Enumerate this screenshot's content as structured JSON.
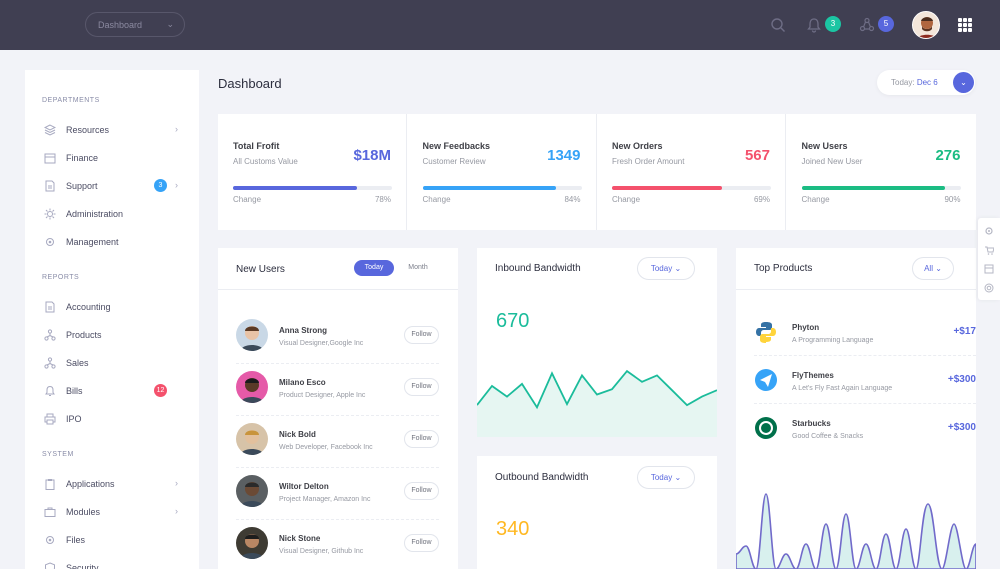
{
  "topbar": {
    "dropdown_label": "Dashboard",
    "icons": [
      "search-icon",
      "bell-icon",
      "share-icon",
      "apps-grid-icon"
    ],
    "badges": [
      {
        "count": "3",
        "color": "#1bc5a3"
      },
      {
        "count": "5",
        "color": "#5867dd"
      }
    ]
  },
  "sidebar": {
    "sections": [
      {
        "title": "DEPARTMENTS"
      },
      {
        "title": "REPORTS"
      },
      {
        "title": "SYSTEM"
      }
    ],
    "items": [
      {
        "label": "Resources",
        "icon": "layers-icon",
        "arrow": true
      },
      {
        "label": "Finance",
        "icon": "calendar-icon"
      },
      {
        "label": "Support",
        "icon": "document-icon",
        "badge": "3",
        "badge_color": "#36a3f7",
        "arrow": true
      },
      {
        "label": "Administration",
        "icon": "settings-icon"
      },
      {
        "label": "Management",
        "icon": "gear-icon"
      },
      {
        "label": "Accounting",
        "icon": "document-icon"
      },
      {
        "label": "Products",
        "icon": "network-icon"
      },
      {
        "label": "Sales",
        "icon": "network-icon"
      },
      {
        "label": "Bills",
        "icon": "bell-icon",
        "badge": "12",
        "badge_color": "#f4516c"
      },
      {
        "label": "IPO",
        "icon": "printer-icon"
      },
      {
        "label": "Applications",
        "icon": "clipboard-icon",
        "arrow": true
      },
      {
        "label": "Modules",
        "icon": "briefcase-icon",
        "arrow": true
      },
      {
        "label": "Files",
        "icon": "gear-icon"
      },
      {
        "label": "Security",
        "icon": "shield-icon"
      }
    ]
  },
  "header": {
    "title": "Dashboard",
    "date_label": "Today:",
    "date_value": "Dec 6"
  },
  "stats": [
    {
      "title": "Total Frofit",
      "subtitle": "All Customs Value",
      "value": "$18M",
      "color": "#5867dd",
      "progress": 0.78,
      "change_label": "Change",
      "change_value": "78%"
    },
    {
      "title": "New Feedbacks",
      "subtitle": "Customer Review",
      "value": "1349",
      "color": "#36a3f7",
      "progress": 0.84,
      "change_label": "Change",
      "change_value": "84%"
    },
    {
      "title": "New Orders",
      "subtitle": "Fresh Order Amount",
      "value": "567",
      "color": "#f4516c",
      "progress": 0.69,
      "change_label": "Change",
      "change_value": "69%"
    },
    {
      "title": "New Users",
      "subtitle": "Joined New User",
      "value": "276",
      "color": "#1bbc83",
      "progress": 0.9,
      "change_label": "Change",
      "change_value": "90%"
    }
  ],
  "new_users": {
    "title": "New Users",
    "tab_today": "Today",
    "tab_month": "Month",
    "follow_label": "Follow",
    "users": [
      {
        "name": "Anna Strong",
        "job": "Visual Designer,Google Inc",
        "avatar_bg": "#c9d8e6"
      },
      {
        "name": "Milano Esco",
        "job": "Product Designer, Apple Inc",
        "avatar_bg": "#e55aa8"
      },
      {
        "name": "Nick Bold",
        "job": "Web Developer, Facebook Inc",
        "avatar_bg": "#d7c3a8"
      },
      {
        "name": "Wiltor Delton",
        "job": "Project Manager, Amazon Inc",
        "avatar_bg": "#5a5f62"
      },
      {
        "name": "Nick Stone",
        "job": "Visual Designer, Github Inc",
        "avatar_bg": "#3e3b33"
      }
    ]
  },
  "inbound": {
    "title": "Inbound Bandwidth",
    "filter": "Today",
    "value": "670",
    "color": "#1bbc9b",
    "fill": "#e6f6f2",
    "points": [
      30,
      48,
      38,
      50,
      28,
      60,
      31,
      58,
      40,
      45,
      62,
      52,
      58,
      44,
      30,
      38,
      44
    ]
  },
  "outbound": {
    "title": "Outbound Bandwidth",
    "filter": "Today",
    "value": "340",
    "color": "#ffb822"
  },
  "top_products": {
    "title": "Top Products",
    "filter": "All",
    "products": [
      {
        "name": "Phyton",
        "desc": "A Programming Language",
        "price": "+$17",
        "icon": "python-logo-icon"
      },
      {
        "name": "FlyThemes",
        "desc": "A Let's Fly Fast Again Language",
        "price": "+$300",
        "icon": "paper-plane-icon"
      },
      {
        "name": "Starbucks",
        "desc": "Good Coffee & Snacks",
        "price": "+$300",
        "icon": "starbucks-logo-icon"
      }
    ],
    "chart_color": "#716aca",
    "chart_fill": "#d8f0ee"
  },
  "side_tools": [
    "gear-icon",
    "cart-icon",
    "layout-icon",
    "support-icon"
  ]
}
